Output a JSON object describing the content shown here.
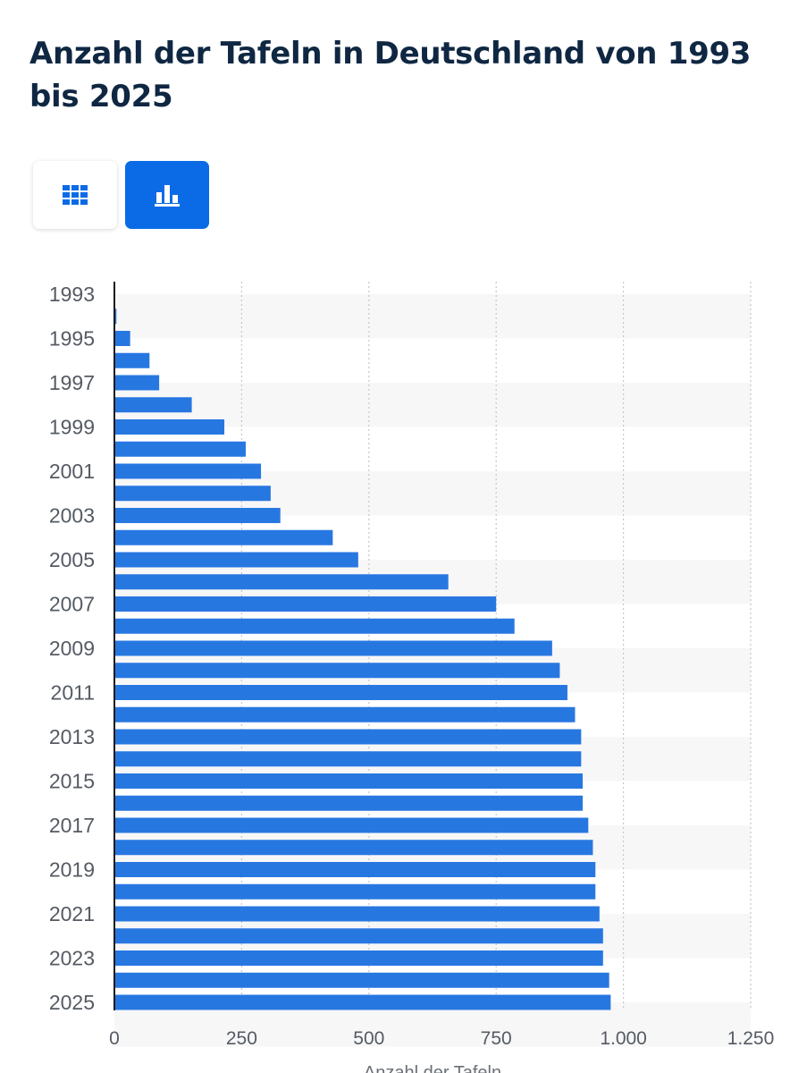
{
  "page": {
    "title": "Anzahl der Tafeln in Deutschland von 1993 bis 2025"
  },
  "toolbar": {
    "table_view_icon": "grid-icon",
    "chart_view_icon": "bar-chart-icon",
    "active": "chart",
    "accent_color": "#0b6be6"
  },
  "chart_data": {
    "type": "bar",
    "orientation": "horizontal",
    "categories": [
      "1993",
      "1994",
      "1995",
      "1996",
      "1997",
      "1998",
      "1999",
      "2000",
      "2001",
      "2002",
      "2003",
      "2004",
      "2005",
      "2006",
      "2007",
      "2008",
      "2009",
      "2010",
      "2011",
      "2012",
      "2013",
      "2014",
      "2015",
      "2016",
      "2017",
      "2018",
      "2019",
      "2020",
      "2021",
      "2022",
      "2023",
      "2024",
      "2025"
    ],
    "values": [
      1,
      4,
      31,
      69,
      88,
      152,
      216,
      258,
      288,
      307,
      326,
      429,
      479,
      656,
      750,
      786,
      860,
      875,
      890,
      905,
      917,
      917,
      920,
      920,
      931,
      940,
      945,
      945,
      953,
      960,
      960,
      972,
      975
    ],
    "ytick_labels": [
      "1993",
      "1995",
      "1997",
      "1999",
      "2001",
      "2003",
      "2005",
      "2007",
      "2009",
      "2011",
      "2013",
      "2015",
      "2017",
      "2019",
      "2021",
      "2023",
      "2025"
    ],
    "xtick_labels": [
      "0",
      "250",
      "500",
      "750",
      "1.000",
      "1.250"
    ],
    "xticks": [
      0,
      250,
      500,
      750,
      1000,
      1250
    ],
    "xlim": [
      0,
      1250
    ],
    "xlabel": "Anzahl der Tafeln",
    "ylabel": "",
    "grid": true,
    "bar_color": "#2777e1",
    "band_color": "#f7f7f8"
  }
}
